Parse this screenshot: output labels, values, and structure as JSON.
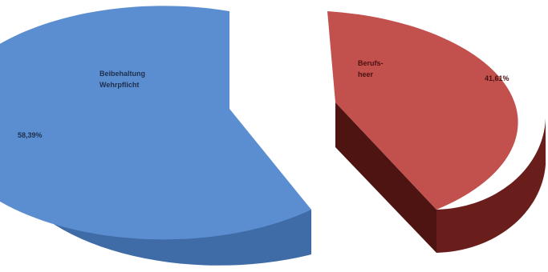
{
  "chart_data": {
    "type": "pie",
    "style": "3d-exploded",
    "title": "",
    "series": [
      {
        "label_lines": [
          "Beibehaltung",
          "Wehrpflicht"
        ],
        "value": 58.39,
        "value_label": "58,39%",
        "color_top": "#5B8ED0",
        "color_side": "#3F6BA6",
        "color_side_dark": "#2E5485"
      },
      {
        "label_lines": [
          "Berufs-",
          "heer"
        ],
        "value": 41.61,
        "value_label": "41,61%",
        "color_top": "#C2504D",
        "color_side": "#6A1E1C",
        "color_side_dark": "#4E1412"
      }
    ],
    "legend": "none",
    "grid": false
  }
}
